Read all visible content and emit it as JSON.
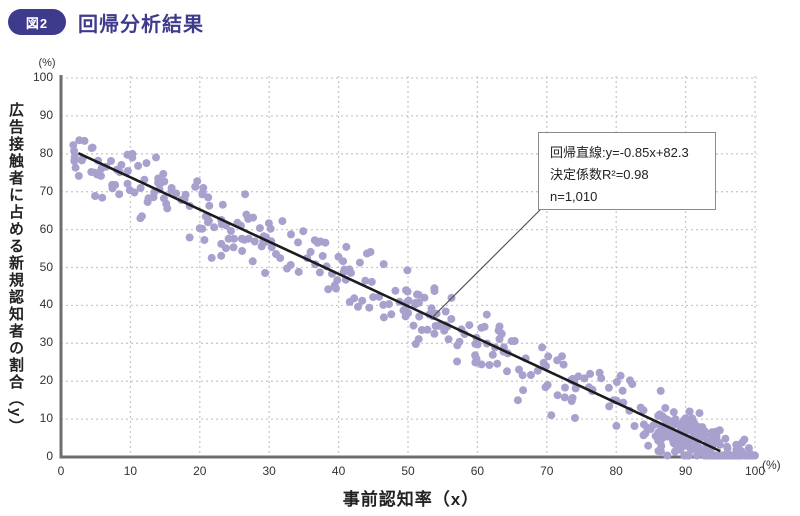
{
  "header": {
    "badge": "図2",
    "title": "回帰分析結果",
    "accent_color": "#3e3a8c"
  },
  "chart_data": {
    "type": "scatter",
    "title": "回帰分析結果",
    "x_title": "事前認知率（x）",
    "y_title": "広告接触者に占める新規認知者の割合（y）",
    "x_unit": "(%)",
    "y_unit": "(%)",
    "xlim": [
      0,
      100
    ],
    "ylim": [
      0,
      100
    ],
    "x_ticks": [
      0,
      10,
      20,
      30,
      40,
      50,
      60,
      70,
      80,
      90,
      100
    ],
    "y_ticks": [
      0,
      10,
      20,
      30,
      40,
      50,
      60,
      70,
      80,
      90,
      100
    ],
    "grid": "dotted",
    "legend_position": "none",
    "regression": {
      "slope": -0.85,
      "intercept": 82.3,
      "r_squared": 0.98,
      "n": 1010,
      "x_start": 2.5,
      "x_end": 95,
      "color": "#1c1c1c",
      "width": 2.6
    },
    "scatter": {
      "seed": 20,
      "color": "#a8a1ce",
      "point_radius": 4,
      "y_min_clamp": 0.4,
      "y_max_clamp": 97,
      "groups": [
        {
          "n": 330,
          "x_min": 1.5,
          "x_max": 96,
          "noise_sd": 4.3
        },
        {
          "n": 175,
          "x_min": 86,
          "x_max": 100,
          "noise_sd": 3.0
        }
      ]
    },
    "annotation": {
      "line1": "回帰直線:y=-0.85x+82.3",
      "line2": "決定係数R²=0.98",
      "line3": "n=1,010",
      "anchor_x": 53.5
    },
    "style": {
      "axis_color": "#6e6e6e",
      "grid_color": "#c9c9c9",
      "tick_color": "#333333",
      "leader_color": "#555555",
      "point_color": "#a8a1ce"
    }
  }
}
